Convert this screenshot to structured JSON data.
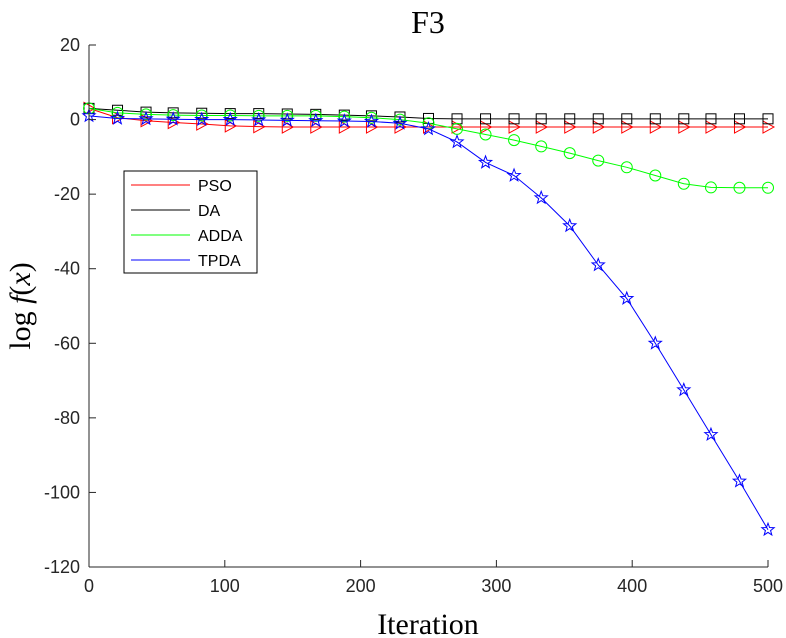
{
  "chart_data": {
    "type": "line",
    "title": "F3",
    "xlabel": "Iteration",
    "ylabel": "log f(x)",
    "xlim": [
      0,
      500
    ],
    "ylim": [
      -120,
      20
    ],
    "xticks": [
      0,
      100,
      200,
      300,
      400,
      500
    ],
    "yticks": [
      20,
      0,
      -20,
      -40,
      -60,
      -80,
      -100,
      -120
    ],
    "grid": false,
    "legend_placement": "left",
    "series": [
      {
        "name": "PSO",
        "color": "#ff0000",
        "marker": "triangle-right",
        "x": [
          0,
          21,
          42,
          62,
          83,
          104,
          125,
          146,
          167,
          188,
          208,
          229,
          250,
          271,
          292,
          313,
          333,
          354,
          375,
          396,
          417,
          438,
          458,
          479,
          500
        ],
        "y": [
          3.0,
          0.5,
          -0.3,
          -0.8,
          -1.2,
          -1.7,
          -1.9,
          -2.0,
          -2.0,
          -2.0,
          -2.0,
          -2.0,
          -2.0,
          -2.0,
          -2.0,
          -2.0,
          -2.0,
          -2.0,
          -2.0,
          -2.0,
          -2.0,
          -2.0,
          -2.0,
          -2.0,
          -2.0
        ]
      },
      {
        "name": "DA",
        "color": "#000000",
        "marker": "square",
        "x": [
          0,
          21,
          42,
          62,
          83,
          104,
          125,
          146,
          167,
          188,
          208,
          229,
          250,
          271,
          292,
          313,
          333,
          354,
          375,
          396,
          417,
          438,
          458,
          479,
          500
        ],
        "y": [
          3.0,
          2.5,
          2.0,
          1.8,
          1.7,
          1.6,
          1.6,
          1.5,
          1.4,
          1.2,
          1.0,
          0.7,
          0.3,
          0.2,
          0.2,
          0.2,
          0.2,
          0.2,
          0.2,
          0.2,
          0.2,
          0.2,
          0.2,
          0.2,
          0.2
        ]
      },
      {
        "name": "ADDA",
        "color": "#00ff00",
        "marker": "circle",
        "x": [
          0,
          21,
          42,
          62,
          83,
          104,
          125,
          146,
          167,
          188,
          208,
          229,
          250,
          271,
          292,
          313,
          333,
          354,
          375,
          396,
          417,
          438,
          458,
          479,
          500
        ],
        "y": [
          3.0,
          1.8,
          1.4,
          1.2,
          1.1,
          1.1,
          1.0,
          1.0,
          1.0,
          0.8,
          0.5,
          0.0,
          -1.0,
          -2.5,
          -4.0,
          -5.5,
          -7.2,
          -9.0,
          -11.0,
          -12.8,
          -15.0,
          -17.2,
          -18.2,
          -18.3,
          -18.3
        ]
      },
      {
        "name": "TPDA",
        "color": "#0000ff",
        "marker": "star",
        "x": [
          0,
          21,
          42,
          62,
          83,
          104,
          125,
          146,
          167,
          188,
          208,
          229,
          250,
          271,
          292,
          313,
          333,
          354,
          375,
          396,
          417,
          438,
          458,
          479,
          500
        ],
        "y": [
          1.0,
          0.3,
          0.2,
          0.1,
          0.0,
          0.0,
          -0.1,
          -0.2,
          -0.3,
          -0.4,
          -0.5,
          -1.0,
          -2.5,
          -6.0,
          -11.5,
          -15.0,
          -21.0,
          -28.5,
          -39.0,
          -48.0,
          -60.0,
          -72.5,
          -84.5,
          -97.0,
          -110.0
        ]
      }
    ]
  }
}
